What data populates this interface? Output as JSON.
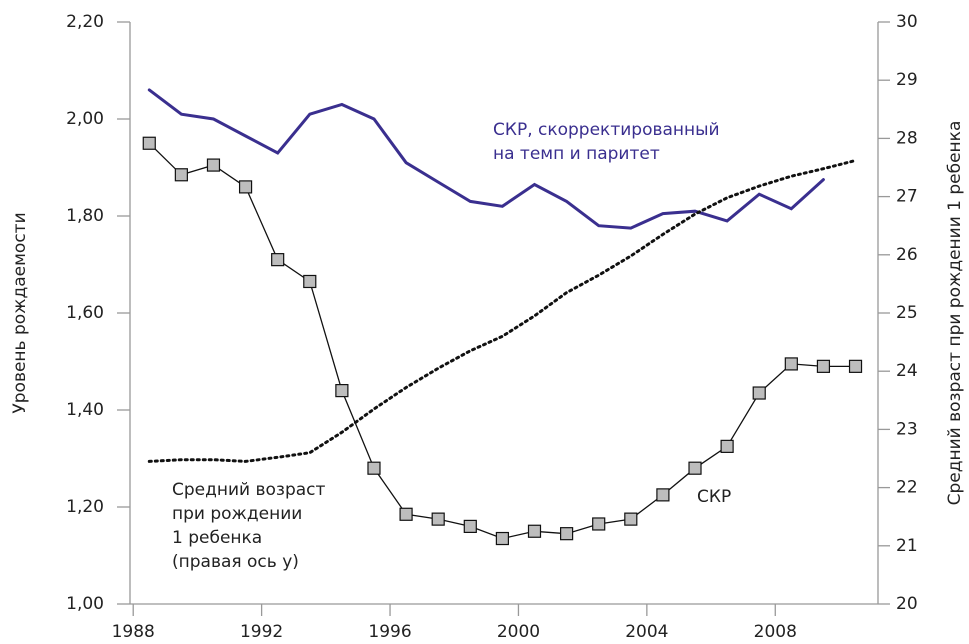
{
  "chart_data": {
    "type": "line",
    "y_label": "Уровень рождаемости",
    "y2_label": "Средний возраст при рождении 1 ребенка",
    "xlim": [
      1987.9,
      2011.2
    ],
    "xticks": [
      1988,
      1992,
      1996,
      2000,
      2004,
      2008
    ],
    "ylim": [
      1.0,
      2.2
    ],
    "yticks": [
      {
        "value": 1.0,
        "label": "1,00"
      },
      {
        "value": 1.2,
        "label": "1,20"
      },
      {
        "value": 1.4,
        "label": "1,40"
      },
      {
        "value": 1.6,
        "label": "1,60"
      },
      {
        "value": 1.8,
        "label": "1,80"
      },
      {
        "value": 2.0,
        "label": "2,00"
      },
      {
        "value": 2.2,
        "label": "2,20"
      }
    ],
    "y2lim": [
      20,
      30
    ],
    "y2ticks": [
      20,
      21,
      22,
      23,
      24,
      25,
      26,
      27,
      28,
      29,
      30
    ],
    "x": [
      1988.5,
      1989.5,
      1990.5,
      1991.5,
      1992.5,
      1993.5,
      1994.5,
      1995.5,
      1996.5,
      1997.5,
      1998.5,
      1999.5,
      2000.5,
      2001.5,
      2002.5,
      2003.5,
      2004.5,
      2005.5,
      2006.5,
      2007.5,
      2008.5,
      2009.5,
      2010.5
    ],
    "series": [
      {
        "color": "#3a2f8f",
        "style": "solid",
        "values": [
          2.06,
          2.01,
          2.0,
          1.965,
          1.93,
          2.01,
          2.03,
          2.0,
          1.91,
          1.87,
          1.83,
          1.82,
          1.865,
          1.83,
          1.78,
          1.775,
          1.805,
          1.81,
          1.79,
          1.845,
          1.815,
          1.875,
          null
        ]
      },
      {
        "color": "#111111",
        "style": "markers",
        "values": [
          1.95,
          1.885,
          1.905,
          1.86,
          1.71,
          1.665,
          1.44,
          1.28,
          1.185,
          1.175,
          1.16,
          1.135,
          1.15,
          1.145,
          1.165,
          1.175,
          1.225,
          1.28,
          1.325,
          1.435,
          1.495,
          1.49,
          1.49
        ]
      },
      {
        "color": "#111111",
        "style": "dotted",
        "axis": "y2",
        "values": [
          22.45,
          22.48,
          22.48,
          22.45,
          22.52,
          22.6,
          22.95,
          23.35,
          23.72,
          24.05,
          24.35,
          24.6,
          24.95,
          25.35,
          25.65,
          25.98,
          26.35,
          26.7,
          26.98,
          27.18,
          27.35,
          27.48,
          27.62
        ]
      }
    ],
    "annotations": [
      {
        "lines": [
          "СКР, скорректированный",
          "на темп и паритет"
        ],
        "color": "#3a2f8f"
      },
      {
        "lines": [
          "Средний возраст",
          "при рождении",
          "1 ребенка",
          "(правая ось у)"
        ],
        "color": "#222222"
      },
      {
        "lines": [
          "СКР"
        ],
        "color": "#222222"
      }
    ]
  }
}
